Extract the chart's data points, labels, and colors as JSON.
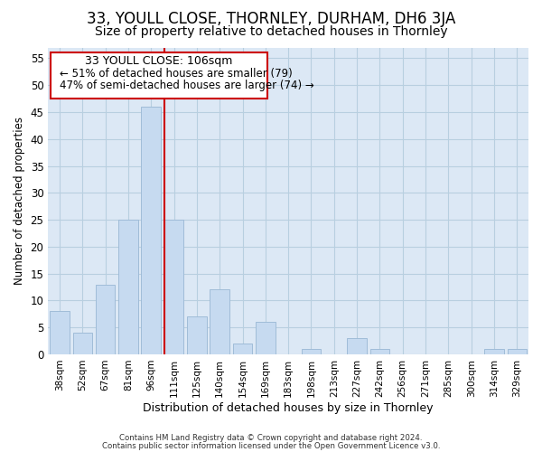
{
  "title": "33, YOULL CLOSE, THORNLEY, DURHAM, DH6 3JA",
  "subtitle": "Size of property relative to detached houses in Thornley",
  "xlabel": "Distribution of detached houses by size in Thornley",
  "ylabel": "Number of detached properties",
  "footer_line1": "Contains HM Land Registry data © Crown copyright and database right 2024.",
  "footer_line2": "Contains public sector information licensed under the Open Government Licence v3.0.",
  "bar_labels": [
    "38sqm",
    "52sqm",
    "67sqm",
    "81sqm",
    "96sqm",
    "111sqm",
    "125sqm",
    "140sqm",
    "154sqm",
    "169sqm",
    "183sqm",
    "198sqm",
    "213sqm",
    "227sqm",
    "242sqm",
    "256sqm",
    "271sqm",
    "285sqm",
    "300sqm",
    "314sqm",
    "329sqm"
  ],
  "bar_values": [
    8,
    4,
    13,
    25,
    46,
    25,
    7,
    12,
    2,
    6,
    0,
    1,
    0,
    3,
    1,
    0,
    0,
    0,
    0,
    1,
    1
  ],
  "bar_color": "#c6daf0",
  "bar_edge_color": "#a0bcd8",
  "vline_x": 4.575,
  "vline_color": "#cc0000",
  "annotation_title": "33 YOULL CLOSE: 106sqm",
  "annotation_line1": "← 51% of detached houses are smaller (79)",
  "annotation_line2": "47% of semi-detached houses are larger (74) →",
  "annotation_box_edge": "#cc0000",
  "ylim": [
    0,
    57
  ],
  "yticks": [
    0,
    5,
    10,
    15,
    20,
    25,
    30,
    35,
    40,
    45,
    50,
    55
  ],
  "background_color": "#ffffff",
  "axes_facecolor": "#dce8f5",
  "grid_color": "#b8cfe0",
  "title_fontsize": 12,
  "subtitle_fontsize": 10
}
